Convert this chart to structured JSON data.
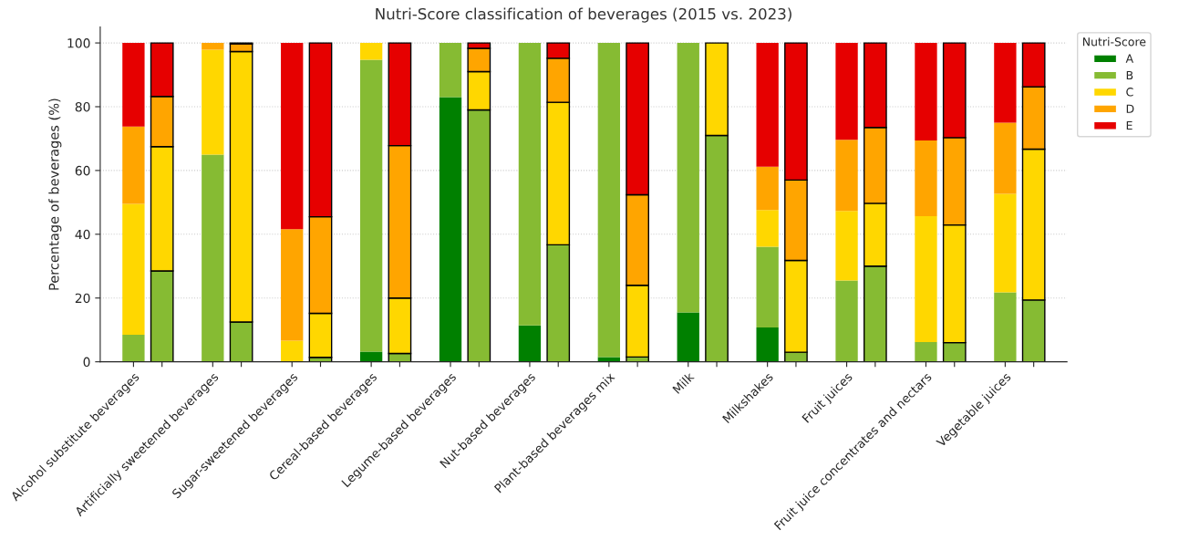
{
  "chart_data": {
    "type": "bar",
    "title": "Nutri-Score classification of beverages (2015 vs. 2023)",
    "ylabel": "Percentage of beverages (%)",
    "legend_title": "Nutri-Score",
    "categories": [
      "Alcohol substitute beverages",
      null,
      "Artificially sweetened beverages",
      null,
      "Sugar-sweetened beverages",
      null,
      "Cereal-based beverages",
      null,
      "Legume-based beverages",
      null,
      "Nut-based beverages",
      null,
      "Plant-based beverages mix",
      null,
      "Milk",
      null,
      "Milkshakes",
      null,
      "Fruit juices",
      null,
      "Fruit juice concentrates and nectars",
      null,
      "Vegetable juices",
      null
    ],
    "stacked": true,
    "ylim": [
      0,
      105
    ],
    "yticks": [
      0,
      20,
      40,
      60,
      80,
      100
    ],
    "grid": "y",
    "legend": "top right",
    "series": [
      {
        "name": "A",
        "color": "#008000",
        "values": [
          0,
          0,
          0,
          0,
          0,
          0,
          3.2,
          0,
          83,
          0,
          11.4,
          0,
          1.5,
          0,
          15.5,
          0,
          10.8,
          0,
          0,
          0,
          0,
          0,
          0,
          0
        ]
      },
      {
        "name": "B",
        "color": "#86bb33",
        "values": [
          8.5,
          28.5,
          65,
          12.5,
          0,
          1.4,
          91.5,
          2.6,
          17,
          79,
          88.6,
          36.7,
          98.5,
          1.5,
          84.5,
          71,
          25.3,
          3,
          25.5,
          30,
          6.2,
          6,
          21.8,
          19.4
        ]
      },
      {
        "name": "C",
        "color": "#ffd700",
        "values": [
          41,
          39,
          32.9,
          84.8,
          6.6,
          13.8,
          5.3,
          17.4,
          0,
          12,
          0,
          44.7,
          0,
          22.5,
          0,
          29,
          11.5,
          28.8,
          21.8,
          19.7,
          39.5,
          36.9,
          30.9,
          47.3
        ]
      },
      {
        "name": "D",
        "color": "#ffa500",
        "values": [
          24.3,
          15.7,
          2.1,
          2.4,
          35,
          30.3,
          0,
          47.8,
          0,
          7.3,
          0,
          13.8,
          0,
          28.4,
          0,
          0,
          13.6,
          25.2,
          22.3,
          23.8,
          23.7,
          27.4,
          22.3,
          19.5
        ]
      },
      {
        "name": "E",
        "color": "#e60000",
        "values": [
          26.2,
          16.8,
          0,
          0.3,
          58.4,
          54.5,
          0,
          32.2,
          0,
          1.7,
          0,
          4.8,
          0,
          47.6,
          0,
          0,
          38.8,
          43,
          30.4,
          26.5,
          30.6,
          29.7,
          25,
          13.8
        ]
      }
    ]
  }
}
